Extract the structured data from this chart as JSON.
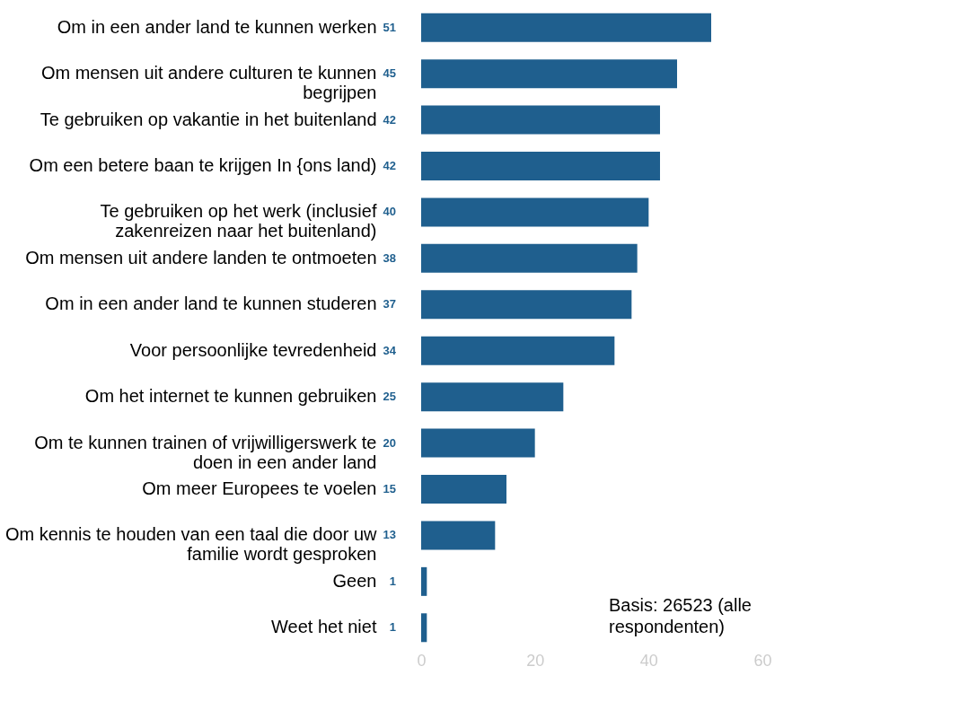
{
  "chart_data": {
    "type": "bar",
    "orientation": "horizontal",
    "categories": [
      "Om in een ander land te kunnen werken",
      "Om mensen uit andere culturen te kunnen begrijpen",
      "Te gebruiken op vakantie in het buitenland",
      "Om een betere baan te krijgen In {ons land)",
      "Te gebruiken op het werk (inclusief zakenreizen naar het buitenland)",
      "Om mensen uit andere landen te ontmoeten",
      "Om in een ander land te kunnen studeren",
      "Voor persoonlijke tevredenheid",
      "Om het internet te kunnen gebruiken",
      "Om te kunnen trainen of vrijwilligerswerk te doen in een ander land",
      "Om meer Europees te voelen",
      "Om kennis te houden van een taal die door uw familie wordt gesproken",
      "Geen",
      "Weet het niet"
    ],
    "values": [
      51,
      45,
      42,
      42,
      40,
      38,
      37,
      34,
      25,
      20,
      15,
      13,
      1,
      1
    ],
    "color": "#1f5f8e",
    "xlim": [
      0,
      60
    ],
    "xticks": [
      0,
      20,
      40,
      60
    ],
    "data_labels": true,
    "grid": false,
    "annotations": [
      "Basis: 26523 (alle respondenten)"
    ]
  }
}
